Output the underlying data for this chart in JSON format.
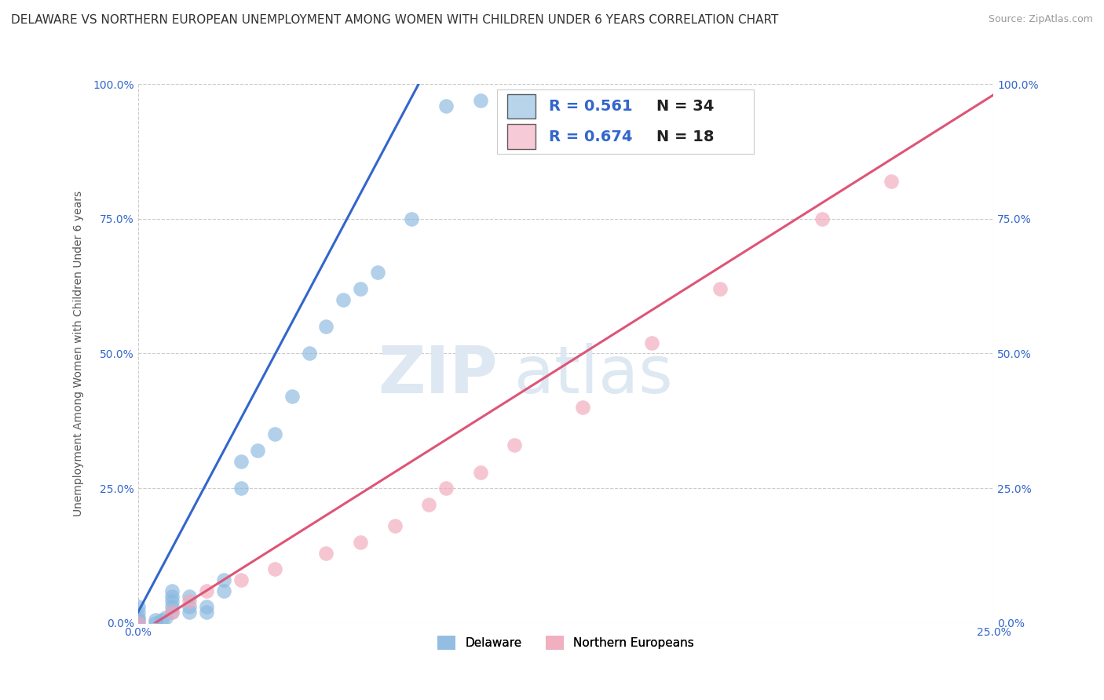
{
  "title": "DELAWARE VS NORTHERN EUROPEAN UNEMPLOYMENT AMONG WOMEN WITH CHILDREN UNDER 6 YEARS CORRELATION CHART",
  "source": "Source: ZipAtlas.com",
  "ylabel": "Unemployment Among Women with Children Under 6 years",
  "xlim": [
    0.0,
    0.25
  ],
  "ylim": [
    0.0,
    1.0
  ],
  "ytick_positions": [
    0.0,
    0.25,
    0.5,
    0.75,
    1.0
  ],
  "xtick_positions": [
    0.0,
    0.25
  ],
  "grid_color": "#cccccc",
  "background_color": "#ffffff",
  "watermark_zip": "ZIP",
  "watermark_atlas": "atlas",
  "watermark_color": "#dde8f2",
  "delaware_color": "#89b8df",
  "northern_european_color": "#f0a8bb",
  "delaware_line_color": "#3366cc",
  "northern_european_line_color": "#dd5577",
  "legend_color": "#3366cc",
  "R_delaware": "0.561",
  "N_delaware": "34",
  "R_northern": "0.674",
  "N_northern": "18",
  "delaware_x": [
    0.0,
    0.0,
    0.0,
    0.0,
    0.0,
    0.005,
    0.005,
    0.007,
    0.008,
    0.01,
    0.01,
    0.01,
    0.01,
    0.01,
    0.015,
    0.015,
    0.015,
    0.02,
    0.02,
    0.025,
    0.025,
    0.03,
    0.03,
    0.035,
    0.04,
    0.045,
    0.05,
    0.055,
    0.06,
    0.065,
    0.07,
    0.08,
    0.09,
    0.1
  ],
  "delaware_y": [
    0.0,
    0.005,
    0.01,
    0.02,
    0.03,
    0.0,
    0.005,
    0.005,
    0.01,
    0.02,
    0.03,
    0.04,
    0.05,
    0.06,
    0.02,
    0.03,
    0.05,
    0.02,
    0.03,
    0.06,
    0.08,
    0.25,
    0.3,
    0.32,
    0.35,
    0.42,
    0.5,
    0.55,
    0.6,
    0.62,
    0.65,
    0.75,
    0.96,
    0.97
  ],
  "northern_x": [
    0.0,
    0.01,
    0.015,
    0.02,
    0.03,
    0.04,
    0.055,
    0.065,
    0.075,
    0.085,
    0.09,
    0.1,
    0.11,
    0.13,
    0.15,
    0.17,
    0.2,
    0.22
  ],
  "northern_y": [
    0.0,
    0.02,
    0.04,
    0.06,
    0.08,
    0.1,
    0.13,
    0.15,
    0.18,
    0.22,
    0.25,
    0.28,
    0.33,
    0.4,
    0.52,
    0.62,
    0.75,
    0.82
  ],
  "title_fontsize": 11,
  "source_fontsize": 9,
  "ylabel_fontsize": 10,
  "tick_fontsize": 10,
  "legend_fontsize": 14,
  "watermark_fontsize_zip": 60,
  "watermark_fontsize_atlas": 60,
  "scatter_size": 180
}
